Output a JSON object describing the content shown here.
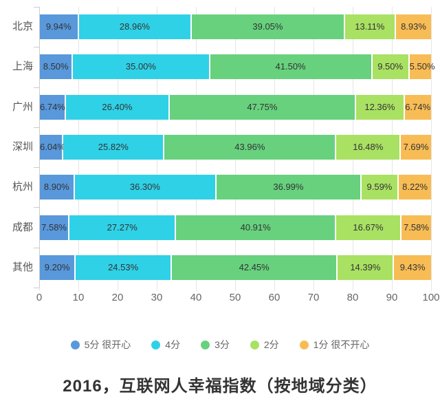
{
  "chart_data": {
    "type": "bar",
    "orientation": "horizontal",
    "stacked": true,
    "title": "2016，互联网人幸福指数（按地域分类）",
    "categories": [
      "北京",
      "上海",
      "广州",
      "深圳",
      "杭州",
      "成都",
      "其他"
    ],
    "series": [
      {
        "name": "5分 很开心",
        "color": "#5898DB",
        "values": [
          9.94,
          8.5,
          6.74,
          6.04,
          8.9,
          7.58,
          9.2
        ]
      },
      {
        "name": "4分",
        "color": "#2FD1E6",
        "values": [
          28.96,
          35.0,
          26.4,
          25.82,
          36.3,
          27.27,
          24.53
        ]
      },
      {
        "name": "3分",
        "color": "#67D17E",
        "values": [
          39.05,
          41.5,
          47.75,
          43.96,
          36.99,
          40.91,
          42.45
        ]
      },
      {
        "name": "2分",
        "color": "#A9E163",
        "values": [
          13.11,
          9.5,
          12.36,
          16.48,
          9.59,
          16.67,
          14.39
        ]
      },
      {
        "name": "1分 很不开心",
        "color": "#F8BC55",
        "values": [
          8.93,
          5.5,
          6.74,
          7.69,
          8.22,
          7.58,
          9.43
        ]
      }
    ],
    "value_label_suffix": "%",
    "value_label_decimals": 2,
    "xlim": [
      0,
      100
    ],
    "x_ticks": [
      0,
      10,
      20,
      30,
      40,
      50,
      60,
      70,
      80,
      90,
      100
    ],
    "grid": true,
    "legend_position": "bottom",
    "colors_meta": {
      "gridline": "#e5e5e5",
      "axis_line": "#cccccc",
      "category_label": "#555555",
      "tick_label": "#666666",
      "segment_label": "#333333",
      "title": "#333333"
    }
  }
}
